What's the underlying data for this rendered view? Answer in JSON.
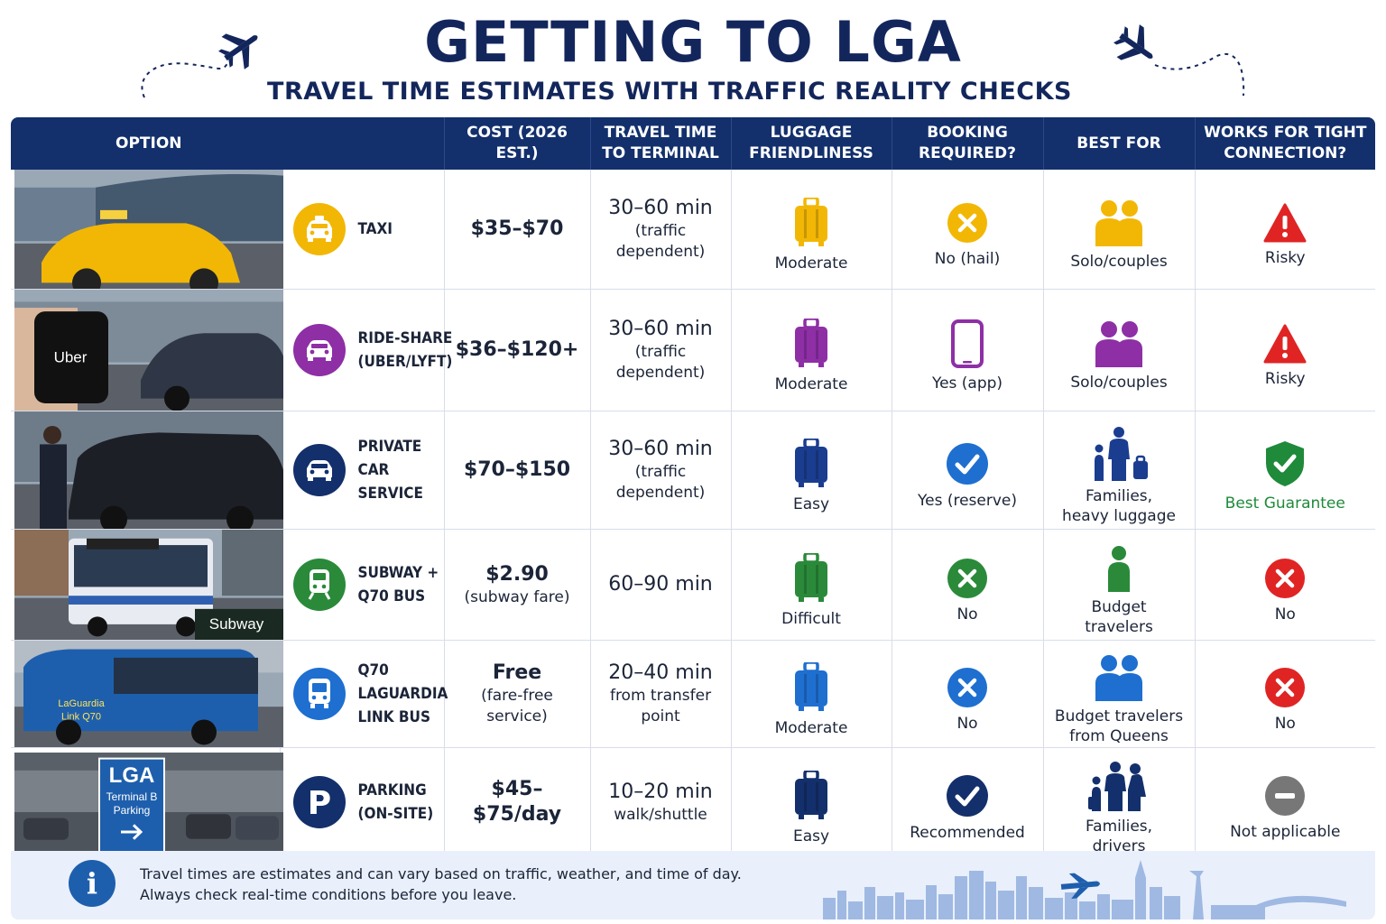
{
  "header": {
    "title": "GETTING TO LGA",
    "subtitle": "TRAVEL TIME ESTIMATES WITH TRAFFIC REALITY CHECKS"
  },
  "columns": {
    "option": "OPTION",
    "cost": "COST (2026 EST.)",
    "travel_time": "TRAVEL TIME\nTO TERMINAL",
    "luggage": "LUGGAGE\nFRIENDLINESS",
    "booking": "BOOKING\nREQUIRED?",
    "best_for": "BEST FOR",
    "tight": "WORKS FOR TIGHT\nCONNECTION?"
  },
  "rows": [
    {
      "photo": "taxi-photo",
      "photo_text": "",
      "option": "TAXI",
      "icon": "taxi-icon",
      "icon_color": "#f2b705",
      "cost": "$35–$70",
      "cost_note": "",
      "time": "30–60 min",
      "time_note": "(traffic\ndependent)",
      "luggage": "Moderate",
      "luggage_color": "#f2b705",
      "booking": "No (hail)",
      "booking_icon": "x-circle-icon",
      "booking_color": "#f2b705",
      "best_for": "Solo/couples",
      "best_icon": "couple-icon",
      "best_color": "#f2b705",
      "tight": "Risky",
      "tight_icon": "warning-icon",
      "tight_color": "#e02424"
    },
    {
      "photo": "rideshare-photo",
      "photo_text": "Uber",
      "option": "RIDE-SHARE\n(UBER/LYFT)",
      "icon": "car-icon",
      "icon_color": "#8e2fa6",
      "cost": "$36–$120+",
      "cost_note": "",
      "time": "30–60 min",
      "time_note": "(traffic\ndependent)",
      "luggage": "Moderate",
      "luggage_color": "#8e2fa6",
      "booking": "Yes (app)",
      "booking_icon": "phone-icon",
      "booking_color": "#8e2fa6",
      "best_for": "Solo/couples",
      "best_icon": "couple-icon",
      "best_color": "#8e2fa6",
      "tight": "Risky",
      "tight_icon": "warning-icon",
      "tight_color": "#e02424"
    },
    {
      "photo": "private-car-photo",
      "photo_text": "",
      "option": "PRIVATE\nCAR SERVICE",
      "icon": "car-icon",
      "icon_color": "#13306c",
      "cost": "$70–$150",
      "cost_note": "",
      "time": "30–60 min",
      "time_note": "(traffic\ndependent)",
      "luggage": "Easy",
      "luggage_color": "#1a3d8f",
      "booking": "Yes (reserve)",
      "booking_icon": "check-circle-icon",
      "booking_color": "#1e6fd0",
      "best_for": "Families,\nheavy luggage",
      "best_icon": "family-luggage-icon",
      "best_color": "#1a3d8f",
      "tight": "Best Guarantee",
      "tight_icon": "shield-check-icon",
      "tight_color": "#1f8a3a"
    },
    {
      "photo": "subway-bus-photo",
      "photo_text": "Subway",
      "option": "SUBWAY +\nQ70 BUS",
      "icon": "train-icon",
      "icon_color": "#2a8a3a",
      "cost": "$2.90",
      "cost_note": "(subway fare)",
      "time": "60–90 min",
      "time_note": "",
      "luggage": "Difficult",
      "luggage_color": "#2a8a3a",
      "booking": "No",
      "booking_icon": "x-circle-icon",
      "booking_color": "#2a8a3a",
      "best_for": "Budget\ntravelers",
      "best_icon": "person-icon",
      "best_color": "#2a8a3a",
      "tight": "No",
      "tight_icon": "x-circle-icon",
      "tight_color": "#e02424"
    },
    {
      "photo": "q70-bus-photo",
      "photo_text": "LaGuardia\nLink Q70",
      "option": "Q70 LAGUARDIA\nLINK BUS",
      "icon": "bus-icon",
      "icon_color": "#1e6fd0",
      "cost": "Free",
      "cost_note": "(fare-free\nservice)",
      "time": "20–40 min",
      "time_note": "from transfer\npoint",
      "luggage": "Moderate",
      "luggage_color": "#1e6fd0",
      "booking": "No",
      "booking_icon": "x-circle-icon",
      "booking_color": "#1e6fd0",
      "best_for": "Budget travelers\nfrom Queens",
      "best_icon": "couple-icon",
      "best_color": "#1e6fd0",
      "tight": "No",
      "tight_icon": "x-circle-icon",
      "tight_color": "#e02424"
    },
    {
      "photo": "parking-photo",
      "photo_text": "LGA\nTerminal B\nParking",
      "option": "PARKING\n(ON-SITE)",
      "icon": "parking-icon",
      "icon_color": "#13306c",
      "cost": "$45–$75/day",
      "cost_note": "",
      "time": "10–20 min",
      "time_note": "walk/shuttle",
      "luggage": "Easy",
      "luggage_color": "#13306c",
      "booking": "Recommended",
      "booking_icon": "check-circle-icon",
      "booking_color": "#13306c",
      "best_for": "Families,\ndrivers",
      "best_icon": "family-icon",
      "best_color": "#13306c",
      "tight": "Not applicable",
      "tight_icon": "minus-circle-icon",
      "tight_color": "#777777"
    }
  ],
  "footer": {
    "icon": "info-icon",
    "line1": "Travel times are estimates and can vary based on traffic, weather, and time of day.",
    "line2": "Always check real-time conditions before you leave."
  }
}
